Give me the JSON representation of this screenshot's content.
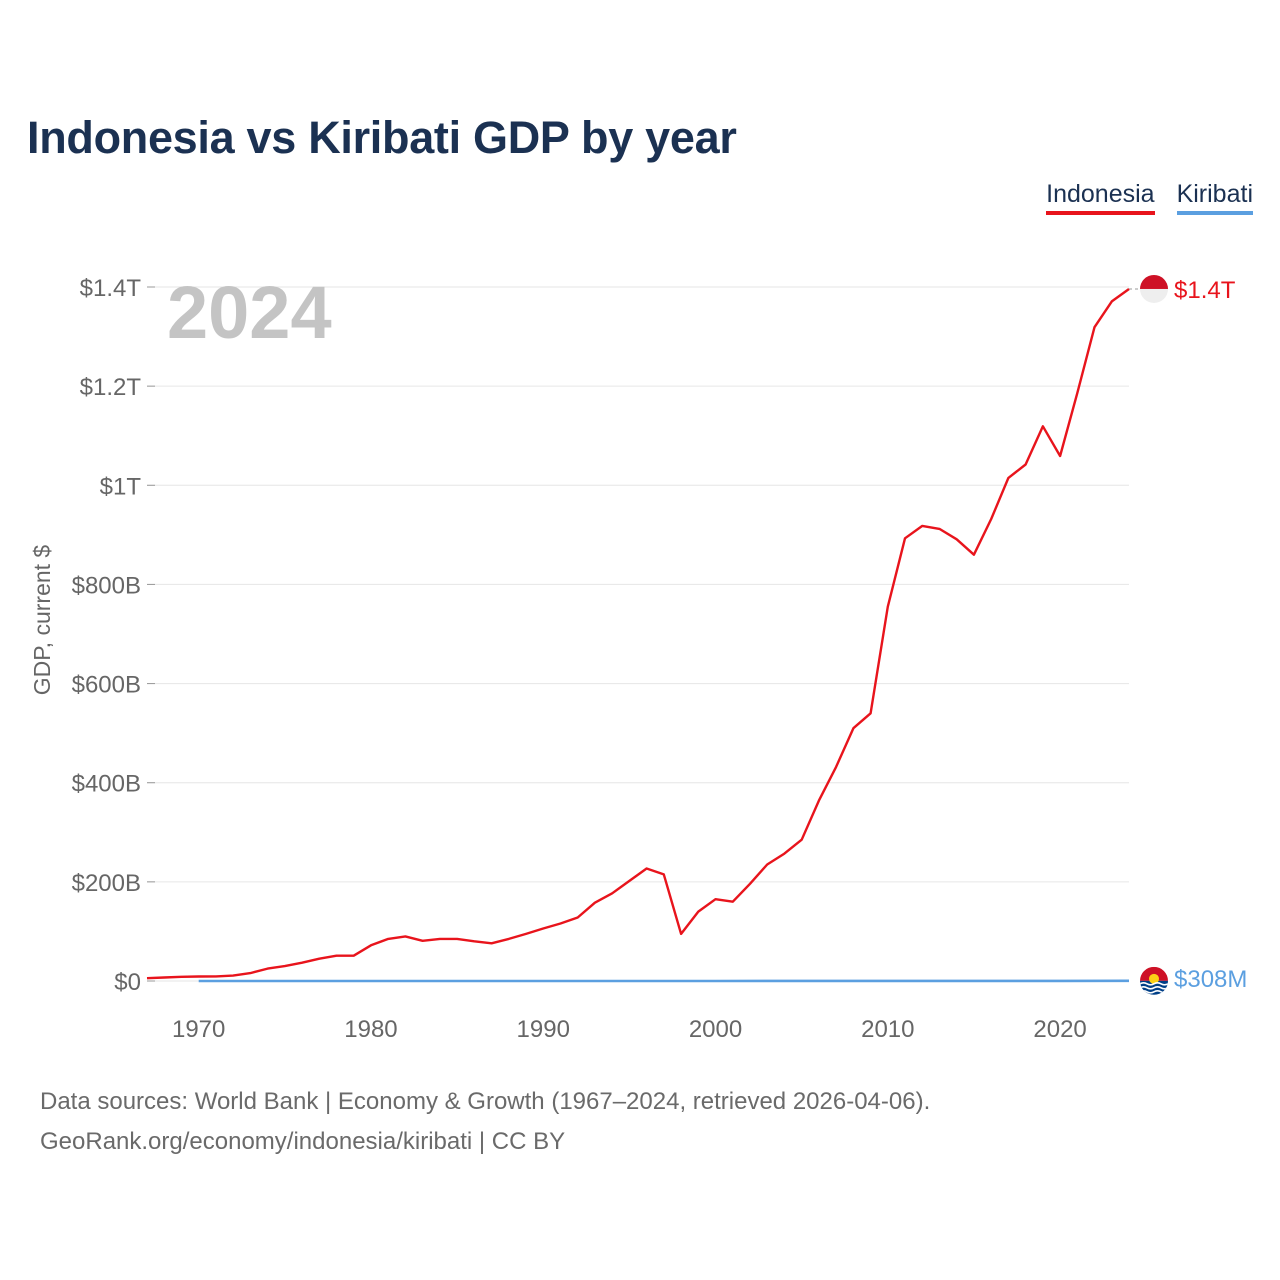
{
  "title": "Indonesia vs Kiribati GDP by year",
  "legend": {
    "indonesia": "Indonesia",
    "kiribati": "Kiribati"
  },
  "year_label": "2024",
  "colors": {
    "indonesia": "#e8141c",
    "kiribati": "#5b9fe0",
    "title": "#1b3152",
    "axis_text": "#666666"
  },
  "footer": {
    "line1": "Data sources: World Bank | Economy & Growth (1967–2024, retrieved 2026-04-06).",
    "line2": "GeoRank.org/economy/indonesia/kiribati | CC BY"
  },
  "chart_data": {
    "type": "line",
    "title": "Indonesia vs Kiribati GDP by year",
    "xlabel": "",
    "ylabel": "GDP, current $",
    "xlim": [
      1967,
      2024
    ],
    "ylim": [
      0,
      1400
    ],
    "y_unit": "billions USD",
    "x_ticks": [
      1970,
      1980,
      1990,
      2000,
      2010,
      2020
    ],
    "y_ticks": [
      {
        "value": 0,
        "label": "$0"
      },
      {
        "value": 200,
        "label": "$200B"
      },
      {
        "value": 400,
        "label": "$400B"
      },
      {
        "value": 600,
        "label": "$600B"
      },
      {
        "value": 800,
        "label": "$800B"
      },
      {
        "value": 1000,
        "label": "$1T"
      },
      {
        "value": 1200,
        "label": "$1.2T"
      },
      {
        "value": 1400,
        "label": "$1.4T"
      }
    ],
    "grid": true,
    "series": [
      {
        "name": "Indonesia",
        "end_label": "$1.4T",
        "x": [
          1967,
          1968,
          1969,
          1970,
          1971,
          1972,
          1973,
          1974,
          1975,
          1976,
          1977,
          1978,
          1979,
          1980,
          1981,
          1982,
          1983,
          1984,
          1985,
          1986,
          1987,
          1988,
          1989,
          1990,
          1991,
          1992,
          1993,
          1994,
          1995,
          1996,
          1997,
          1998,
          1999,
          2000,
          2001,
          2002,
          2003,
          2004,
          2005,
          2006,
          2007,
          2008,
          2009,
          2010,
          2011,
          2012,
          2013,
          2014,
          2015,
          2016,
          2017,
          2018,
          2019,
          2020,
          2021,
          2022,
          2023,
          2024
        ],
        "values": [
          5.7,
          7,
          8.5,
          9,
          9.3,
          10.8,
          16,
          25,
          30,
          37,
          45,
          51,
          51,
          72,
          85,
          90,
          81,
          85,
          85,
          80,
          76,
          85,
          95,
          106,
          116,
          128,
          158,
          177,
          202,
          227,
          215,
          95,
          140,
          165,
          160,
          196,
          235,
          257,
          285,
          364,
          432,
          510,
          540,
          755,
          893,
          918,
          912,
          891,
          860,
          932,
          1015,
          1042,
          1119,
          1059,
          1186,
          1319,
          1371,
          1396
        ]
      },
      {
        "name": "Kiribati",
        "end_label": "$308M",
        "x": [
          1970,
          1975,
          1980,
          1985,
          1990,
          1995,
          2000,
          2005,
          2010,
          2015,
          2020,
          2024
        ],
        "values": [
          0.014,
          0.04,
          0.04,
          0.027,
          0.03,
          0.047,
          0.067,
          0.11,
          0.156,
          0.172,
          0.197,
          0.308
        ]
      }
    ]
  }
}
